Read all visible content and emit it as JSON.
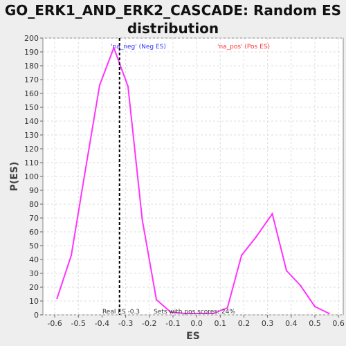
{
  "chart_data": {
    "type": "line",
    "title_line1": "GO_ERK1_AND_ERK2_CASCADE: Random ES",
    "title_line2": "distribution",
    "xlabel": "ES",
    "ylabel": "P(ES)",
    "xlim": [
      -0.65,
      0.62
    ],
    "ylim": [
      0,
      200
    ],
    "x_ticks": [
      "-0.6",
      "-0.5",
      "-0.4",
      "-0.3",
      "-0.2",
      "-0.1",
      "0.0",
      "0.1",
      "0.2",
      "0.3",
      "0.4",
      "0.5",
      "0.6"
    ],
    "y_ticks": [
      "0",
      "10",
      "20",
      "30",
      "40",
      "50",
      "60",
      "70",
      "80",
      "90",
      "100",
      "110",
      "120",
      "130",
      "140",
      "150",
      "160",
      "170",
      "180",
      "190",
      "200"
    ],
    "grid": true,
    "series": [
      {
        "color": "#ff33ff",
        "x": [
          -0.59,
          -0.53,
          -0.47,
          -0.41,
          -0.35,
          -0.29,
          -0.23,
          -0.17,
          -0.11,
          -0.05,
          0.01,
          0.07,
          0.13,
          0.19,
          0.25,
          0.32,
          0.38,
          0.44,
          0.5,
          0.56
        ],
        "y": [
          12,
          43,
          105,
          166,
          193,
          165,
          69,
          11,
          2,
          1,
          1,
          1,
          5,
          43,
          56,
          73,
          32,
          21,
          6,
          1
        ]
      }
    ],
    "real_es": -0.326,
    "annotations": {
      "neg": "'na_neg' (Neg ES)",
      "pos": "'na_pos' (Pos ES)",
      "real_es": "Real ES -0.3",
      "pos_scores": "Sets with pos scores: 24%"
    },
    "colors": {
      "line": "#ff33ff",
      "neg": "#3333ff",
      "pos": "#ff3333",
      "real_es_line": "#000000"
    }
  }
}
